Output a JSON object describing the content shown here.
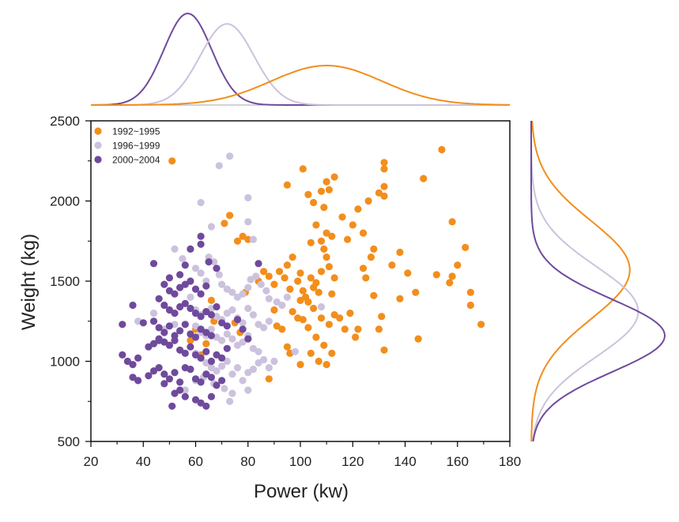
{
  "chart_data": {
    "type": "scatter",
    "title": "",
    "xlabel": "Power (kw)",
    "ylabel": "Weight (kg)",
    "xlim": [
      20,
      180
    ],
    "ylim": [
      500,
      2500
    ],
    "xticks": [
      20,
      40,
      60,
      80,
      100,
      120,
      140,
      160,
      180
    ],
    "yticks": [
      500,
      1000,
      1500,
      2000,
      2500
    ],
    "grid": false,
    "legend_position": "top-left",
    "series": [
      {
        "name": "1992~1995",
        "color": "#f28e1c",
        "points": [
          [
            51,
            2250
          ],
          [
            73,
            1910
          ],
          [
            78,
            1780
          ],
          [
            80,
            1760
          ],
          [
            71,
            1860
          ],
          [
            76,
            1750
          ],
          [
            84,
            1500
          ],
          [
            86,
            1560
          ],
          [
            88,
            1530
          ],
          [
            90,
            1480
          ],
          [
            92,
            1560
          ],
          [
            94,
            1520
          ],
          [
            95,
            1600
          ],
          [
            96,
            1450
          ],
          [
            97,
            1650
          ],
          [
            99,
            1500
          ],
          [
            100,
            1550
          ],
          [
            101,
            1440
          ],
          [
            102,
            1400
          ],
          [
            103,
            1370
          ],
          [
            104,
            1520
          ],
          [
            105,
            1460
          ],
          [
            106,
            1490
          ],
          [
            107,
            1430
          ],
          [
            108,
            1560
          ],
          [
            109,
            1700
          ],
          [
            110,
            1650
          ],
          [
            111,
            1590
          ],
          [
            112,
            1420
          ],
          [
            113,
            1520
          ],
          [
            95,
            2100
          ],
          [
            101,
            2200
          ],
          [
            103,
            2040
          ],
          [
            105,
            1990
          ],
          [
            108,
            2060
          ],
          [
            109,
            1960
          ],
          [
            110,
            2120
          ],
          [
            111,
            2070
          ],
          [
            113,
            2150
          ],
          [
            110,
            1800
          ],
          [
            112,
            1780
          ],
          [
            108,
            1750
          ],
          [
            106,
            1850
          ],
          [
            104,
            1740
          ],
          [
            116,
            1900
          ],
          [
            118,
            1760
          ],
          [
            120,
            1850
          ],
          [
            122,
            1950
          ],
          [
            124,
            1800
          ],
          [
            126,
            2000
          ],
          [
            128,
            1700
          ],
          [
            130,
            2050
          ],
          [
            132,
            2240
          ],
          [
            132,
            2200
          ],
          [
            132,
            2090
          ],
          [
            132,
            2030
          ],
          [
            147,
            2140
          ],
          [
            154,
            2320
          ],
          [
            158,
            1870
          ],
          [
            90,
            1320
          ],
          [
            91,
            1220
          ],
          [
            93,
            1200
          ],
          [
            95,
            1090
          ],
          [
            97,
            1310
          ],
          [
            99,
            1270
          ],
          [
            100,
            1380
          ],
          [
            101,
            1260
          ],
          [
            103,
            1210
          ],
          [
            104,
            1050
          ],
          [
            105,
            1330
          ],
          [
            106,
            1150
          ],
          [
            107,
            1000
          ],
          [
            108,
            1270
          ],
          [
            109,
            1100
          ],
          [
            110,
            980
          ],
          [
            111,
            1230
          ],
          [
            112,
            1050
          ],
          [
            113,
            1290
          ],
          [
            115,
            1270
          ],
          [
            117,
            1200
          ],
          [
            119,
            1300
          ],
          [
            121,
            1150
          ],
          [
            122,
            1200
          ],
          [
            124,
            1580
          ],
          [
            125,
            1520
          ],
          [
            127,
            1650
          ],
          [
            128,
            1410
          ],
          [
            130,
            1200
          ],
          [
            131,
            1280
          ],
          [
            132,
            1070
          ],
          [
            135,
            1600
          ],
          [
            138,
            1680
          ],
          [
            138,
            1390
          ],
          [
            141,
            1550
          ],
          [
            144,
            1430
          ],
          [
            145,
            1140
          ],
          [
            152,
            1540
          ],
          [
            157,
            1490
          ],
          [
            158,
            1530
          ],
          [
            160,
            1600
          ],
          [
            163,
            1710
          ],
          [
            165,
            1430
          ],
          [
            165,
            1350
          ],
          [
            169,
            1230
          ],
          [
            88,
            890
          ],
          [
            96,
            1050
          ],
          [
            100,
            980
          ],
          [
            62,
            1040
          ],
          [
            64,
            1110
          ],
          [
            66,
            1380
          ],
          [
            67,
            1250
          ],
          [
            58,
            1130
          ],
          [
            60,
            1200
          ],
          [
            75,
            1240
          ],
          [
            77,
            1180
          ],
          [
            79,
            1430
          ]
        ]
      },
      {
        "name": "1996~1999",
        "color": "#ccc2dd",
        "points": [
          [
            73,
            2280
          ],
          [
            69,
            2220
          ],
          [
            62,
            1990
          ],
          [
            66,
            1840
          ],
          [
            58,
            1700
          ],
          [
            55,
            1640
          ],
          [
            60,
            1580
          ],
          [
            62,
            1550
          ],
          [
            64,
            1500
          ],
          [
            65,
            1650
          ],
          [
            67,
            1620
          ],
          [
            69,
            1540
          ],
          [
            70,
            1480
          ],
          [
            72,
            1450
          ],
          [
            74,
            1430
          ],
          [
            76,
            1400
          ],
          [
            78,
            1420
          ],
          [
            80,
            1460
          ],
          [
            81,
            1510
          ],
          [
            83,
            1530
          ],
          [
            85,
            1480
          ],
          [
            87,
            1440
          ],
          [
            88,
            1390
          ],
          [
            91,
            1370
          ],
          [
            93,
            1350
          ],
          [
            95,
            1400
          ],
          [
            60,
            1320
          ],
          [
            62,
            1290
          ],
          [
            64,
            1310
          ],
          [
            66,
            1330
          ],
          [
            68,
            1280
          ],
          [
            70,
            1260
          ],
          [
            72,
            1300
          ],
          [
            74,
            1320
          ],
          [
            76,
            1270
          ],
          [
            78,
            1240
          ],
          [
            80,
            1330
          ],
          [
            82,
            1290
          ],
          [
            84,
            1230
          ],
          [
            86,
            1210
          ],
          [
            88,
            1250
          ],
          [
            60,
            1220
          ],
          [
            62,
            1180
          ],
          [
            64,
            1160
          ],
          [
            66,
            1200
          ],
          [
            68,
            1150
          ],
          [
            70,
            1130
          ],
          [
            72,
            1170
          ],
          [
            74,
            1140
          ],
          [
            76,
            1100
          ],
          [
            78,
            1120
          ],
          [
            80,
            1160
          ],
          [
            82,
            1080
          ],
          [
            84,
            1060
          ],
          [
            86,
            1010
          ],
          [
            88,
            960
          ],
          [
            90,
            1000
          ],
          [
            60,
            1050
          ],
          [
            62,
            1020
          ],
          [
            64,
            990
          ],
          [
            66,
            960
          ],
          [
            68,
            940
          ],
          [
            70,
            970
          ],
          [
            72,
            1000
          ],
          [
            74,
            920
          ],
          [
            76,
            960
          ],
          [
            78,
            880
          ],
          [
            80,
            930
          ],
          [
            82,
            950
          ],
          [
            84,
            990
          ],
          [
            60,
            880
          ],
          [
            63,
            900
          ],
          [
            67,
            860
          ],
          [
            71,
            830
          ],
          [
            74,
            800
          ],
          [
            56,
            820
          ],
          [
            73,
            750
          ],
          [
            80,
            820
          ],
          [
            80,
            2020
          ],
          [
            80,
            1870
          ],
          [
            82,
            1760
          ],
          [
            98,
            1060
          ],
          [
            108,
            1340
          ],
          [
            52,
            1230
          ],
          [
            38,
            1250
          ],
          [
            52,
            1700
          ],
          [
            58,
            1400
          ],
          [
            44,
            1300
          ],
          [
            48,
            1200
          ]
        ]
      },
      {
        "name": "2000~2004",
        "color": "#6f4a9c",
        "points": [
          [
            36,
            1350
          ],
          [
            44,
            1610
          ],
          [
            50,
            1520
          ],
          [
            54,
            1540
          ],
          [
            56,
            1600
          ],
          [
            58,
            1700
          ],
          [
            62,
            1730
          ],
          [
            62,
            1780
          ],
          [
            65,
            1620
          ],
          [
            68,
            1580
          ],
          [
            48,
            1480
          ],
          [
            50,
            1440
          ],
          [
            52,
            1420
          ],
          [
            54,
            1460
          ],
          [
            56,
            1480
          ],
          [
            58,
            1500
          ],
          [
            60,
            1450
          ],
          [
            62,
            1420
          ],
          [
            64,
            1470
          ],
          [
            46,
            1390
          ],
          [
            48,
            1350
          ],
          [
            50,
            1320
          ],
          [
            52,
            1300
          ],
          [
            54,
            1340
          ],
          [
            56,
            1360
          ],
          [
            58,
            1330
          ],
          [
            60,
            1300
          ],
          [
            62,
            1280
          ],
          [
            64,
            1310
          ],
          [
            66,
            1290
          ],
          [
            68,
            1340
          ],
          [
            32,
            1230
          ],
          [
            40,
            1240
          ],
          [
            44,
            1250
          ],
          [
            46,
            1210
          ],
          [
            48,
            1180
          ],
          [
            50,
            1220
          ],
          [
            52,
            1160
          ],
          [
            54,
            1190
          ],
          [
            56,
            1230
          ],
          [
            58,
            1170
          ],
          [
            60,
            1150
          ],
          [
            62,
            1200
          ],
          [
            64,
            1180
          ],
          [
            66,
            1160
          ],
          [
            70,
            1240
          ],
          [
            72,
            1220
          ],
          [
            76,
            1260
          ],
          [
            78,
            1200
          ],
          [
            80,
            1140
          ],
          [
            84,
            1610
          ],
          [
            32,
            1040
          ],
          [
            34,
            1000
          ],
          [
            36,
            980
          ],
          [
            38,
            1020
          ],
          [
            42,
            1090
          ],
          [
            44,
            1110
          ],
          [
            46,
            1140
          ],
          [
            48,
            1120
          ],
          [
            50,
            1100
          ],
          [
            52,
            1130
          ],
          [
            54,
            1070
          ],
          [
            56,
            1050
          ],
          [
            58,
            1090
          ],
          [
            60,
            1040
          ],
          [
            62,
            1020
          ],
          [
            64,
            1060
          ],
          [
            66,
            1000
          ],
          [
            68,
            1040
          ],
          [
            70,
            1020
          ],
          [
            72,
            1080
          ],
          [
            36,
            900
          ],
          [
            38,
            880
          ],
          [
            42,
            910
          ],
          [
            44,
            940
          ],
          [
            46,
            960
          ],
          [
            48,
            920
          ],
          [
            50,
            890
          ],
          [
            52,
            930
          ],
          [
            54,
            870
          ],
          [
            56,
            960
          ],
          [
            58,
            950
          ],
          [
            60,
            890
          ],
          [
            62,
            870
          ],
          [
            64,
            920
          ],
          [
            66,
            900
          ],
          [
            68,
            850
          ],
          [
            70,
            880
          ],
          [
            48,
            860
          ],
          [
            52,
            800
          ],
          [
            54,
            820
          ],
          [
            56,
            780
          ],
          [
            60,
            760
          ],
          [
            62,
            740
          ],
          [
            64,
            720
          ],
          [
            66,
            780
          ],
          [
            51,
            720
          ],
          [
            46,
            1130
          ]
        ]
      }
    ],
    "marginal_distributions": {
      "top": [
        {
          "series": "2000~2004",
          "peak": 57
        },
        {
          "series": "1996~1999",
          "peak": 72
        },
        {
          "series": "1992~1995",
          "peak": 110
        }
      ],
      "right": [
        {
          "series": "1992~1995",
          "peak": 1570
        },
        {
          "series": "1996~1999",
          "peak": 1310
        },
        {
          "series": "2000~2004",
          "peak": 1160
        }
      ]
    }
  }
}
